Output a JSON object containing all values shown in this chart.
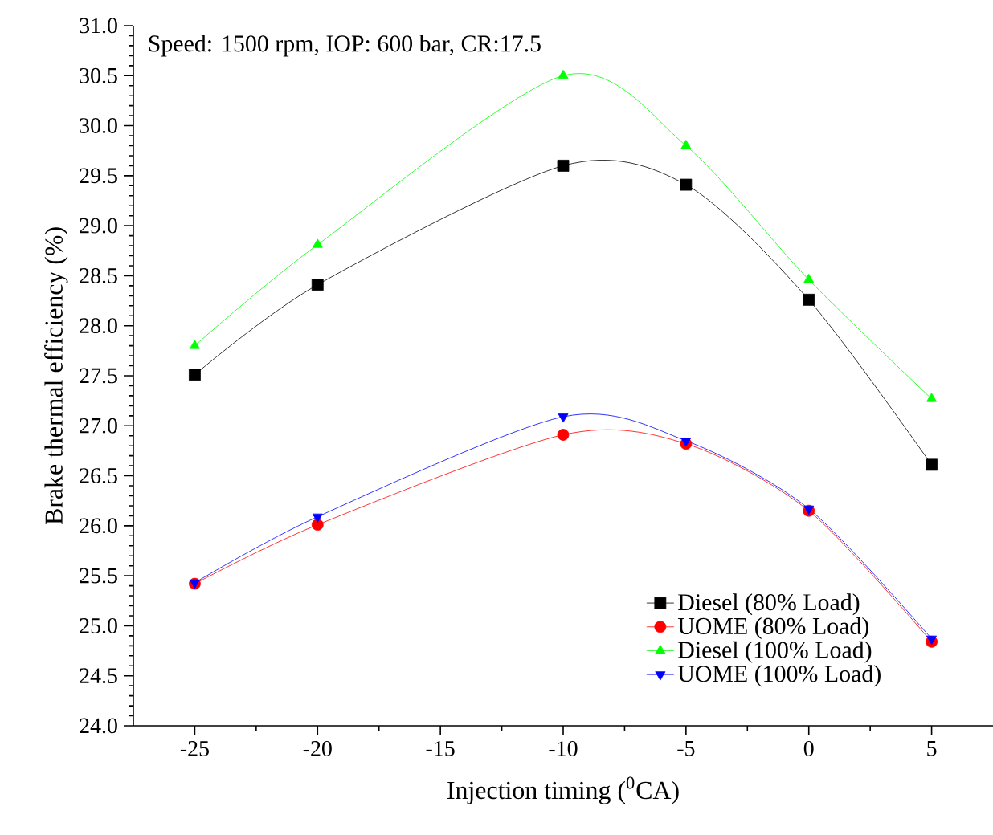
{
  "chart_data": {
    "type": "line",
    "title": "Speed: 1500 rpm, IOP: 600 bar, CR:17.5",
    "xlabel": "Injection timing ($^{0}$CA)",
    "ylabel": "Brake thermal efficiency (%)",
    "x": [
      -25,
      -20,
      -10,
      -5,
      0,
      5
    ],
    "series": [
      {
        "name": "Diesel (80% Load)",
        "color": "#000000",
        "marker": "square",
        "values": [
          27.51,
          28.41,
          29.6,
          29.41,
          28.26,
          26.61
        ]
      },
      {
        "name": "UOME (80% Load)",
        "color": "#ff0000",
        "marker": "circle",
        "values": [
          25.42,
          26.01,
          26.91,
          26.82,
          26.15,
          24.84
        ]
      },
      {
        "name": "Diesel (100% Load)",
        "color": "#00ff00",
        "marker": "triangle",
        "values": [
          27.8,
          28.81,
          30.5,
          29.8,
          28.46,
          27.27
        ]
      },
      {
        "name": "UOME (100% Load)",
        "color": "#0000ff",
        "marker": "triangle-down",
        "values": [
          25.43,
          26.09,
          27.09,
          26.85,
          26.17,
          24.87
        ]
      }
    ],
    "xlim": [
      -27.5,
      7.5
    ],
    "xticks": [
      -25,
      -20,
      -15,
      -10,
      -5,
      0,
      5
    ],
    "ylim": [
      24.0,
      31.0
    ],
    "yticks": [
      {
        "value": 24,
        "label": "24.0"
      },
      {
        "value": 24.5,
        "label": "24.5"
      },
      {
        "value": 25,
        "label": "25.0"
      },
      {
        "value": 25.5,
        "label": "25.5"
      },
      {
        "value": 26,
        "label": "26.0"
      },
      {
        "value": 26.5,
        "label": "26.5"
      },
      {
        "value": 27,
        "label": "27.0"
      },
      {
        "value": 27.5,
        "label": "27.5"
      },
      {
        "value": 28,
        "label": "28.0"
      },
      {
        "value": 28.5,
        "label": "28.5"
      },
      {
        "value": 29,
        "label": "29.0"
      },
      {
        "value": 29.5,
        "label": "29.5"
      },
      {
        "value": 30,
        "label": "30.0"
      },
      {
        "value": 30.5,
        "label": "30.5"
      },
      {
        "value": 31,
        "label": "31.0"
      }
    ],
    "legend": "bottom right",
    "grid": false,
    "line_style": "solid"
  }
}
